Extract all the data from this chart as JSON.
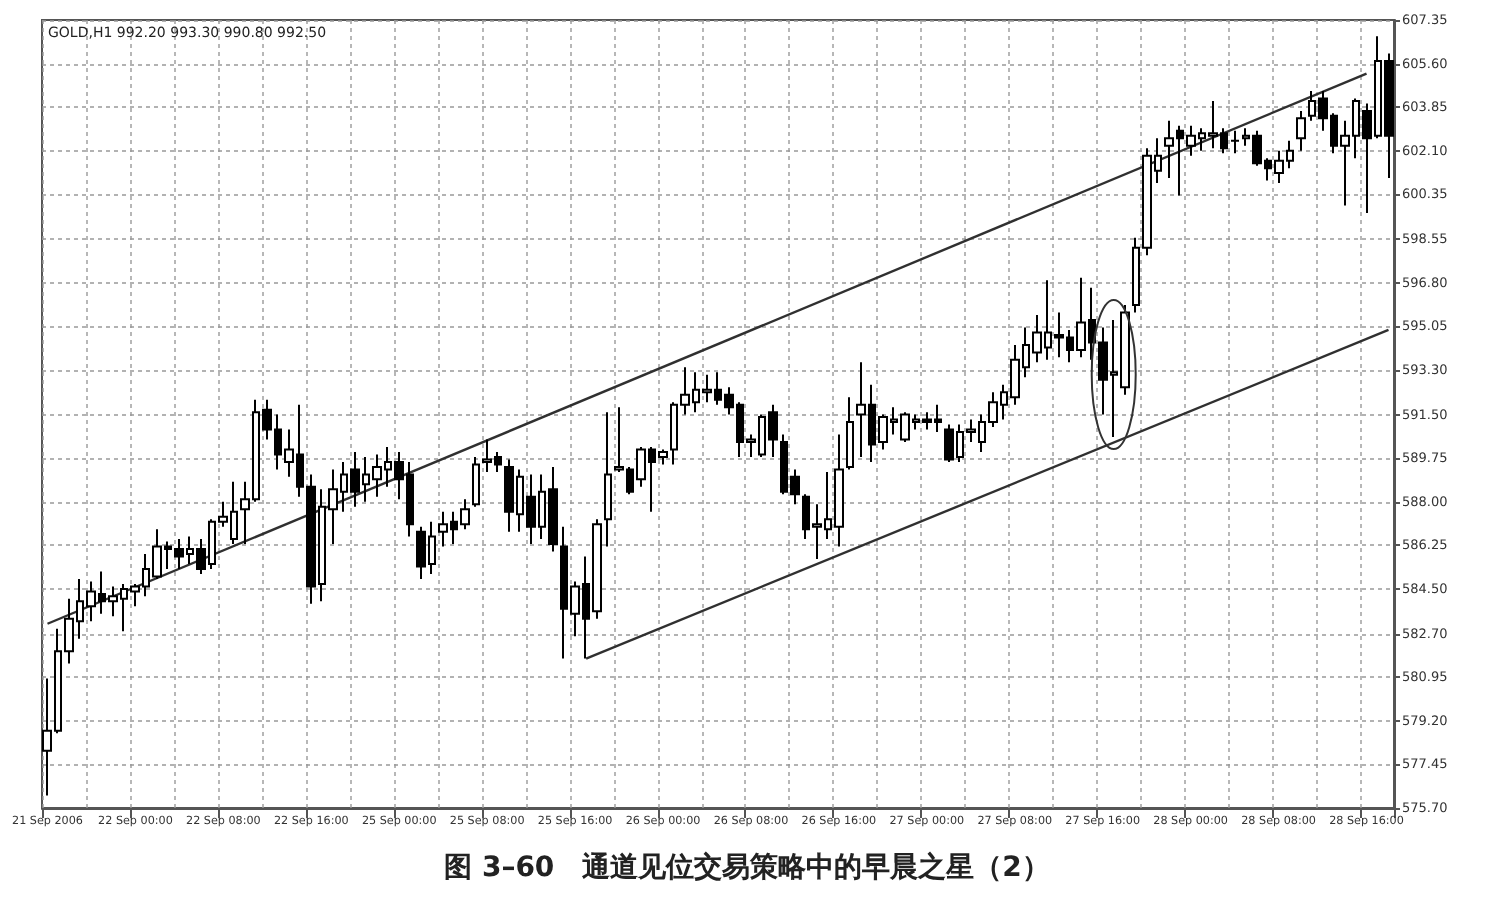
{
  "chart_data": {
    "type": "candlestick",
    "title": "图 3–60　通道见位交易策略中的早晨之星（2）",
    "annotations": [
      "GOLD,H1 992.20 993.30 990.80 992.50"
    ],
    "categories": [
      "21 Sep 2006",
      null,
      null,
      null,
      null,
      null,
      null,
      null,
      "22 Sep 00:00",
      null,
      null,
      null,
      null,
      null,
      null,
      null,
      "22 Sep 08:00",
      null,
      null,
      null,
      null,
      null,
      null,
      null,
      "22 Sep 16:00",
      null,
      null,
      null,
      null,
      null,
      null,
      null,
      "25 Sep 00:00",
      null,
      null,
      null,
      null,
      null,
      null,
      null,
      "25 Sep 08:00",
      null,
      null,
      null,
      null,
      null,
      null,
      null,
      "25 Sep 16:00",
      null,
      null,
      null,
      null,
      null,
      null,
      null,
      "26 Sep 00:00",
      null,
      null,
      null,
      null,
      null,
      null,
      null,
      "26 Sep 08:00",
      null,
      null,
      null,
      null,
      null,
      null,
      null,
      "26 Sep 16:00",
      null,
      null,
      null,
      null,
      null,
      null,
      null,
      "27 Sep 00:00",
      null,
      null,
      null,
      null,
      null,
      null,
      null,
      "27 Sep 08:00",
      null,
      null,
      null,
      null,
      null,
      null,
      null,
      "27 Sep 16:00",
      null,
      null,
      null,
      null,
      null,
      null,
      null,
      "28 Sep 00:00",
      null,
      null,
      null,
      null,
      null,
      null,
      null,
      "28 Sep 08:00",
      null,
      null,
      null,
      null,
      null,
      null,
      null,
      "28 Sep 16:00",
      null,
      null
    ],
    "ylim": [
      575.7,
      607.35
    ],
    "yticks": [
      {
        "value": 575.7,
        "label": "575.70"
      },
      577.45,
      {
        "value": 579.2,
        "label": "579.20"
      },
      580.95,
      {
        "value": 582.7,
        "label": "582.70"
      },
      {
        "value": 584.5,
        "label": "584.50"
      },
      586.25,
      {
        "value": 588,
        "label": "588.00"
      },
      589.75,
      {
        "value": 591.5,
        "label": "591.50"
      },
      {
        "value": 593.3,
        "label": "593.30"
      },
      595.05,
      {
        "value": 596.8,
        "label": "596.80"
      },
      598.55,
      600.35,
      {
        "value": 602.1,
        "label": "602.10"
      },
      603.85,
      {
        "value": 605.6,
        "label": "605.60"
      },
      607.35
    ],
    "grid": true,
    "series": [
      {
        "type": "line",
        "color": "#303030",
        "values": [
          583.1,
          null,
          null,
          null,
          null,
          null,
          null,
          null,
          null,
          null,
          null,
          null,
          null,
          null,
          null,
          null,
          null,
          null,
          null,
          null,
          null,
          null,
          null,
          null,
          null,
          null,
          null,
          null,
          null,
          null,
          null,
          null,
          null,
          null,
          null,
          null,
          null,
          null,
          null,
          null,
          null,
          null,
          null,
          null,
          null,
          null,
          null,
          null,
          null,
          null,
          null,
          null,
          null,
          null,
          null,
          null,
          null,
          null,
          null,
          null,
          null,
          null,
          null,
          null,
          null,
          null,
          null,
          null,
          null,
          null,
          null,
          null,
          null,
          null,
          null,
          null,
          null,
          null,
          null,
          null,
          null,
          null,
          null,
          null,
          null,
          null,
          null,
          null,
          null,
          null,
          null,
          null,
          null,
          null,
          null,
          null,
          null,
          null,
          null,
          null,
          null,
          null,
          null,
          null,
          null,
          null,
          null,
          null,
          null,
          null,
          null,
          null,
          null,
          null,
          null,
          null,
          null,
          null,
          null,
          null,
          605.2,
          null,
          null
        ]
      },
      {
        "type": "line",
        "color": "#303030",
        "values": [
          null,
          null,
          null,
          null,
          null,
          null,
          null,
          null,
          null,
          null,
          null,
          null,
          null,
          null,
          null,
          null,
          null,
          null,
          null,
          null,
          null,
          null,
          null,
          null,
          null,
          null,
          null,
          null,
          null,
          null,
          null,
          null,
          null,
          null,
          null,
          null,
          null,
          null,
          null,
          null,
          null,
          null,
          null,
          null,
          null,
          null,
          null,
          null,
          null,
          581.7,
          null,
          null,
          null,
          null,
          null,
          null,
          null,
          null,
          null,
          null,
          null,
          null,
          null,
          null,
          null,
          null,
          null,
          null,
          null,
          null,
          null,
          null,
          null,
          null,
          null,
          null,
          null,
          null,
          null,
          null,
          null,
          null,
          null,
          null,
          null,
          null,
          null,
          null,
          null,
          null,
          null,
          null,
          null,
          null,
          null,
          null,
          null,
          null,
          null,
          null,
          null,
          null,
          null,
          null,
          null,
          null,
          null,
          null,
          null,
          null,
          null,
          null,
          null,
          null,
          null,
          null,
          null,
          null,
          null,
          null,
          null,
          null,
          594.9
        ]
      },
      {
        "color": "#000000",
        "ohlc": [
          [
            578.0,
            580.9,
            576.2,
            578.8
          ],
          [
            578.8,
            582.9,
            578.7,
            582.0
          ],
          [
            582.0,
            584.1,
            581.5,
            583.3
          ],
          [
            583.2,
            584.9,
            582.5,
            584.0
          ],
          [
            583.8,
            584.8,
            583.2,
            584.4
          ],
          [
            584.3,
            585.2,
            583.5,
            584.0
          ],
          [
            584.0,
            584.6,
            583.4,
            584.2
          ],
          [
            584.1,
            584.7,
            582.8,
            584.5
          ],
          [
            584.4,
            584.7,
            583.8,
            584.6
          ],
          [
            584.6,
            585.9,
            584.2,
            585.3
          ],
          [
            585.0,
            586.9,
            584.9,
            586.2
          ],
          [
            586.2,
            586.4,
            585.3,
            586.1
          ],
          [
            586.1,
            586.5,
            585.3,
            585.8
          ],
          [
            585.9,
            586.6,
            585.5,
            586.1
          ],
          [
            586.1,
            586.5,
            585.1,
            585.3
          ],
          [
            585.5,
            587.3,
            585.3,
            587.2
          ],
          [
            587.2,
            588.0,
            587.0,
            587.4
          ],
          [
            586.5,
            588.8,
            586.3,
            587.6
          ],
          [
            587.7,
            588.8,
            586.3,
            588.1
          ],
          [
            588.1,
            592.1,
            588.0,
            591.6
          ],
          [
            591.7,
            592.1,
            590.5,
            590.9
          ],
          [
            590.9,
            591.5,
            589.3,
            589.9
          ],
          [
            589.6,
            590.9,
            589.0,
            590.1
          ],
          [
            589.9,
            591.9,
            588.2,
            588.6
          ],
          [
            588.6,
            589.1,
            583.9,
            584.6
          ],
          [
            584.7,
            588.5,
            584.0,
            587.8
          ],
          [
            587.7,
            589.3,
            586.3,
            588.5
          ],
          [
            588.4,
            589.6,
            587.6,
            589.1
          ],
          [
            589.3,
            590.0,
            587.8,
            588.4
          ],
          [
            588.7,
            589.8,
            588.0,
            589.1
          ],
          [
            588.9,
            589.9,
            588.2,
            589.4
          ],
          [
            589.3,
            590.2,
            588.6,
            589.6
          ],
          [
            589.6,
            590.0,
            588.1,
            588.9
          ],
          [
            589.1,
            589.6,
            586.6,
            587.1
          ],
          [
            586.8,
            587.0,
            584.9,
            585.4
          ],
          [
            585.5,
            587.2,
            585.1,
            586.6
          ],
          [
            586.8,
            587.6,
            586.2,
            587.1
          ],
          [
            587.2,
            587.6,
            586.3,
            586.9
          ],
          [
            587.1,
            588.1,
            586.9,
            587.7
          ],
          [
            587.9,
            589.8,
            587.8,
            589.5
          ],
          [
            589.6,
            590.5,
            589.2,
            589.7
          ],
          [
            589.8,
            590.0,
            589.2,
            589.5
          ],
          [
            589.4,
            589.7,
            586.8,
            587.6
          ],
          [
            587.5,
            589.3,
            586.8,
            589.0
          ],
          [
            588.2,
            589.1,
            586.3,
            587.0
          ],
          [
            587.0,
            589.1,
            586.5,
            588.4
          ],
          [
            588.5,
            589.4,
            586.0,
            586.3
          ],
          [
            586.2,
            587.0,
            581.7,
            583.7
          ],
          [
            583.5,
            584.8,
            582.6,
            584.6
          ],
          [
            584.7,
            585.8,
            581.7,
            583.3
          ],
          [
            583.6,
            587.3,
            583.3,
            587.1
          ],
          [
            587.3,
            591.6,
            586.2,
            589.1
          ],
          [
            589.3,
            591.8,
            589.2,
            589.4
          ],
          [
            589.3,
            589.4,
            588.3,
            588.4
          ],
          [
            588.9,
            590.2,
            588.6,
            590.1
          ],
          [
            590.1,
            590.2,
            587.6,
            589.6
          ],
          [
            589.8,
            590.1,
            589.5,
            590.0
          ],
          [
            590.1,
            592.0,
            589.5,
            591.9
          ],
          [
            591.9,
            593.4,
            591.5,
            592.3
          ],
          [
            592.0,
            593.2,
            591.6,
            592.5
          ],
          [
            592.4,
            593.1,
            592.0,
            592.5
          ],
          [
            592.5,
            593.2,
            591.9,
            592.1
          ],
          [
            592.3,
            592.6,
            591.5,
            591.8
          ],
          [
            591.9,
            592.0,
            589.8,
            590.4
          ],
          [
            590.4,
            590.7,
            589.8,
            590.5
          ],
          [
            589.9,
            591.5,
            589.8,
            591.4
          ],
          [
            591.6,
            591.9,
            589.8,
            590.5
          ],
          [
            590.4,
            590.7,
            588.3,
            588.4
          ],
          [
            589.0,
            589.3,
            587.9,
            588.3
          ],
          [
            588.2,
            588.3,
            586.5,
            586.9
          ],
          [
            587.0,
            587.9,
            585.7,
            587.1
          ],
          [
            586.9,
            589.2,
            586.5,
            587.3
          ],
          [
            587.0,
            590.7,
            586.2,
            589.3
          ],
          [
            589.4,
            592.2,
            589.3,
            591.2
          ],
          [
            591.5,
            593.6,
            589.8,
            591.9
          ],
          [
            591.9,
            592.7,
            589.6,
            590.3
          ],
          [
            590.4,
            591.5,
            590.1,
            591.4
          ],
          [
            591.2,
            591.8,
            590.7,
            591.3
          ],
          [
            590.5,
            591.6,
            590.4,
            591.5
          ],
          [
            591.2,
            591.5,
            590.9,
            591.3
          ],
          [
            591.3,
            591.6,
            590.9,
            591.2
          ],
          [
            591.3,
            591.9,
            590.8,
            591.2
          ],
          [
            590.9,
            591.1,
            589.6,
            589.7
          ],
          [
            589.8,
            591.1,
            589.6,
            590.8
          ],
          [
            590.8,
            591.3,
            590.4,
            590.9
          ],
          [
            590.4,
            591.5,
            590.0,
            591.2
          ],
          [
            591.2,
            592.4,
            591.0,
            592.0
          ],
          [
            591.9,
            592.7,
            591.3,
            592.4
          ],
          [
            592.2,
            594.3,
            591.9,
            593.7
          ],
          [
            593.4,
            595.0,
            593.0,
            594.3
          ],
          [
            594.0,
            595.5,
            593.6,
            594.8
          ],
          [
            594.2,
            596.9,
            593.7,
            594.8
          ],
          [
            594.7,
            595.6,
            593.8,
            594.6
          ],
          [
            594.6,
            594.9,
            593.6,
            594.1
          ],
          [
            594.1,
            597.0,
            593.8,
            595.2
          ],
          [
            595.3,
            596.6,
            593.7,
            594.4
          ],
          [
            594.4,
            595.0,
            591.5,
            592.9
          ],
          [
            593.1,
            595.3,
            590.6,
            593.2
          ],
          [
            592.6,
            595.9,
            592.3,
            595.6
          ],
          [
            595.9,
            598.6,
            595.6,
            598.2
          ],
          [
            598.2,
            602.2,
            597.9,
            601.9
          ],
          [
            601.3,
            602.6,
            600.8,
            601.9
          ],
          [
            602.3,
            603.3,
            601.0,
            602.6
          ],
          [
            602.9,
            603.1,
            600.3,
            602.6
          ],
          [
            602.3,
            603.1,
            601.9,
            602.7
          ],
          [
            602.6,
            603.0,
            602.1,
            602.8
          ],
          [
            602.7,
            604.1,
            602.2,
            602.8
          ],
          [
            602.8,
            603.0,
            602.0,
            602.2
          ],
          [
            602.5,
            602.9,
            602.0,
            602.5
          ],
          [
            602.6,
            603.0,
            602.3,
            602.7
          ],
          [
            602.7,
            602.9,
            601.5,
            601.6
          ],
          [
            601.7,
            601.8,
            600.9,
            601.4
          ],
          [
            601.2,
            602.1,
            600.8,
            601.7
          ],
          [
            601.7,
            602.5,
            601.4,
            602.1
          ],
          [
            602.6,
            603.7,
            602.1,
            603.4
          ],
          [
            603.5,
            604.5,
            603.3,
            604.1
          ],
          [
            604.2,
            604.5,
            602.9,
            603.4
          ],
          [
            603.5,
            603.6,
            602.0,
            602.3
          ],
          [
            602.3,
            603.3,
            599.9,
            602.7
          ],
          [
            602.7,
            604.2,
            601.8,
            604.1
          ],
          [
            603.7,
            604.0,
            599.6,
            602.6
          ],
          [
            602.7,
            606.7,
            602.6,
            605.7
          ],
          [
            605.7,
            606.0,
            601.0,
            602.7
          ]
        ]
      }
    ]
  }
}
